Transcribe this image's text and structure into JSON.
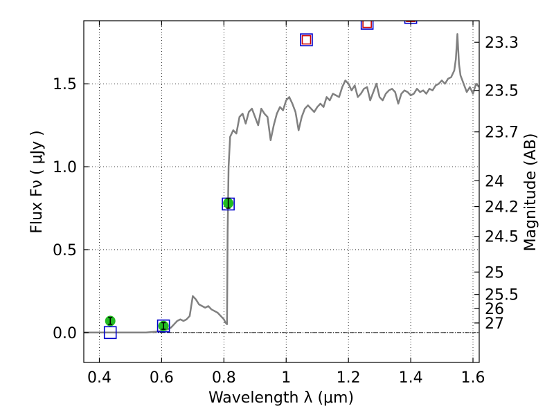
{
  "chart_data": {
    "type": "line",
    "xlabel": "Wavelength  λ (μm)",
    "ylabel": "Flux  Fν  ( μJy )",
    "ylabel_right": "Magnitude (AB)",
    "xlim": [
      0.35,
      1.62
    ],
    "ylim": [
      -0.18,
      1.88
    ],
    "grid": true,
    "x_ticks": [
      0.4,
      0.6,
      0.8,
      1.0,
      1.2,
      1.4,
      1.6
    ],
    "x_tick_labels": [
      "0.4",
      "0.6",
      "0.8",
      "1",
      "1.2",
      "1.4",
      "1.6"
    ],
    "y_ticks": [
      0.0,
      0.5,
      1.0,
      1.5
    ],
    "y_tick_labels": [
      "0.0",
      "0.5",
      "1.0",
      "1.5"
    ],
    "right_axis_ticks": [
      {
        "label": "23.3",
        "flux": 1.75
      },
      {
        "label": "23.5",
        "flux": 1.46
      },
      {
        "label": "23.7",
        "flux": 1.21
      },
      {
        "label": "24",
        "flux": 0.915
      },
      {
        "label": "24.2",
        "flux": 0.76
      },
      {
        "label": "24.5",
        "flux": 0.58
      },
      {
        "label": "25",
        "flux": 0.365
      },
      {
        "label": "25.5",
        "flux": 0.23
      },
      {
        "label": "26",
        "flux": 0.145
      },
      {
        "label": "27",
        "flux": 0.058
      }
    ],
    "zero_line": 0.0,
    "colors": {
      "spectrum": "#808080",
      "model_square": "#0000cc",
      "upper_square": "#cc0000",
      "observed_point": "#22bb22",
      "error_bar": "#000000"
    },
    "series": [
      {
        "kind": "spectrum",
        "x": [
          0.35,
          0.4,
          0.45,
          0.5,
          0.55,
          0.58,
          0.6,
          0.62,
          0.63,
          0.64,
          0.65,
          0.66,
          0.67,
          0.68,
          0.69,
          0.7,
          0.71,
          0.72,
          0.73,
          0.74,
          0.75,
          0.76,
          0.77,
          0.78,
          0.79,
          0.8,
          0.805,
          0.81,
          0.812,
          0.815,
          0.82,
          0.83,
          0.84,
          0.85,
          0.86,
          0.87,
          0.88,
          0.89,
          0.9,
          0.91,
          0.92,
          0.93,
          0.94,
          0.95,
          0.96,
          0.97,
          0.98,
          0.99,
          1.0,
          1.01,
          1.02,
          1.03,
          1.04,
          1.05,
          1.06,
          1.07,
          1.08,
          1.09,
          1.1,
          1.11,
          1.12,
          1.13,
          1.14,
          1.15,
          1.16,
          1.17,
          1.18,
          1.19,
          1.2,
          1.21,
          1.22,
          1.23,
          1.24,
          1.25,
          1.26,
          1.27,
          1.28,
          1.29,
          1.3,
          1.31,
          1.32,
          1.33,
          1.34,
          1.35,
          1.36,
          1.37,
          1.38,
          1.39,
          1.4,
          1.41,
          1.42,
          1.43,
          1.44,
          1.45,
          1.46,
          1.47,
          1.48,
          1.49,
          1.5,
          1.51,
          1.52,
          1.53,
          1.54,
          1.545,
          1.55,
          1.555,
          1.56,
          1.57,
          1.58,
          1.59,
          1.6,
          1.61,
          1.62
        ],
        "y": [
          0.0,
          0.0,
          0.0,
          0.0,
          0.0,
          0.005,
          0.01,
          0.02,
          0.03,
          0.05,
          0.07,
          0.08,
          0.07,
          0.08,
          0.1,
          0.22,
          0.2,
          0.17,
          0.16,
          0.15,
          0.16,
          0.14,
          0.13,
          0.12,
          0.1,
          0.08,
          0.06,
          0.05,
          0.6,
          1.0,
          1.18,
          1.22,
          1.2,
          1.3,
          1.32,
          1.26,
          1.33,
          1.35,
          1.3,
          1.25,
          1.35,
          1.32,
          1.3,
          1.16,
          1.25,
          1.32,
          1.36,
          1.34,
          1.4,
          1.42,
          1.38,
          1.33,
          1.22,
          1.3,
          1.35,
          1.37,
          1.35,
          1.33,
          1.36,
          1.38,
          1.36,
          1.42,
          1.4,
          1.44,
          1.43,
          1.42,
          1.48,
          1.52,
          1.5,
          1.46,
          1.49,
          1.42,
          1.44,
          1.47,
          1.48,
          1.4,
          1.45,
          1.5,
          1.42,
          1.4,
          1.44,
          1.46,
          1.47,
          1.45,
          1.38,
          1.44,
          1.46,
          1.45,
          1.43,
          1.44,
          1.47,
          1.45,
          1.46,
          1.44,
          1.47,
          1.46,
          1.49,
          1.5,
          1.52,
          1.5,
          1.53,
          1.54,
          1.58,
          1.65,
          1.8,
          1.62,
          1.55,
          1.5,
          1.45,
          1.48,
          1.44,
          1.5,
          1.48
        ]
      },
      {
        "kind": "model_photometry",
        "name": "",
        "x": [
          0.435,
          0.606,
          0.814,
          1.065,
          1.26,
          1.4
        ],
        "y": [
          0.0,
          0.04,
          0.775,
          1.765,
          1.865,
          1.9
        ]
      },
      {
        "kind": "upper_model",
        "name": "",
        "x": [
          1.065,
          1.26,
          1.4
        ],
        "y": [
          1.765,
          1.865,
          1.9
        ]
      },
      {
        "kind": "observed",
        "name": "",
        "x": [
          0.435,
          0.606,
          0.814
        ],
        "y": [
          0.07,
          0.04,
          0.78
        ],
        "yerr": [
          0.02,
          0.02,
          0.03
        ]
      }
    ]
  }
}
